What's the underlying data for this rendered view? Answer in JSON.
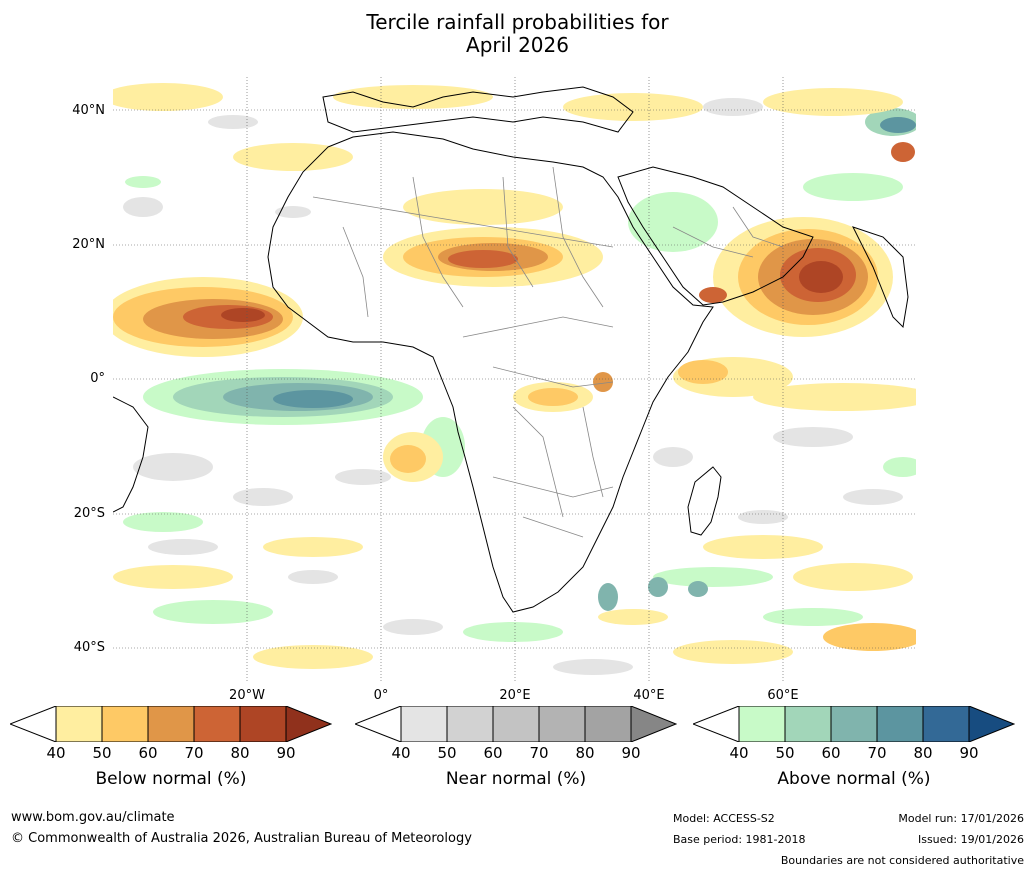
{
  "title": {
    "line1": "Tercile rainfall probabilities for",
    "line2": "April 2026"
  },
  "map": {
    "lat_labels": [
      "40°N",
      "20°N",
      "0°",
      "20°S",
      "40°S"
    ],
    "lon_labels": [
      "20°W",
      "0°",
      "20°E",
      "40°E",
      "60°E"
    ]
  },
  "colorbars": [
    {
      "label": "Below normal (%)",
      "ticks": [
        "40",
        "50",
        "60",
        "70",
        "80",
        "90"
      ],
      "colors": [
        "#ffeea0",
        "#fec965",
        "#e09648",
        "#cd6435",
        "#ae4525",
        "#90311c"
      ]
    },
    {
      "label": "Near normal (%)",
      "ticks": [
        "40",
        "50",
        "60",
        "70",
        "80",
        "90"
      ],
      "colors": [
        "#e4e4e4",
        "#d2d2d2",
        "#c3c3c3",
        "#b3b3b3",
        "#a3a3a3",
        "#868686"
      ]
    },
    {
      "label": "Above normal (%)",
      "ticks": [
        "40",
        "50",
        "60",
        "70",
        "80",
        "90"
      ],
      "colors": [
        "#c8fac8",
        "#a2d6b9",
        "#80b4ad",
        "#5c95a0",
        "#336996",
        "#174c80"
      ]
    }
  ],
  "footer": {
    "website": "www.bom.gov.au/climate",
    "copyright": "© Commonwealth of Australia 2026, Australian Bureau of Meteorology",
    "model": "Model: ACCESS-S2",
    "base_period": "Base period: 1981-2018",
    "model_run": "Model run: 17/01/2026",
    "issued": "Issued: 19/01/2026",
    "disclaimer": "Boundaries are not considered authoritative"
  }
}
